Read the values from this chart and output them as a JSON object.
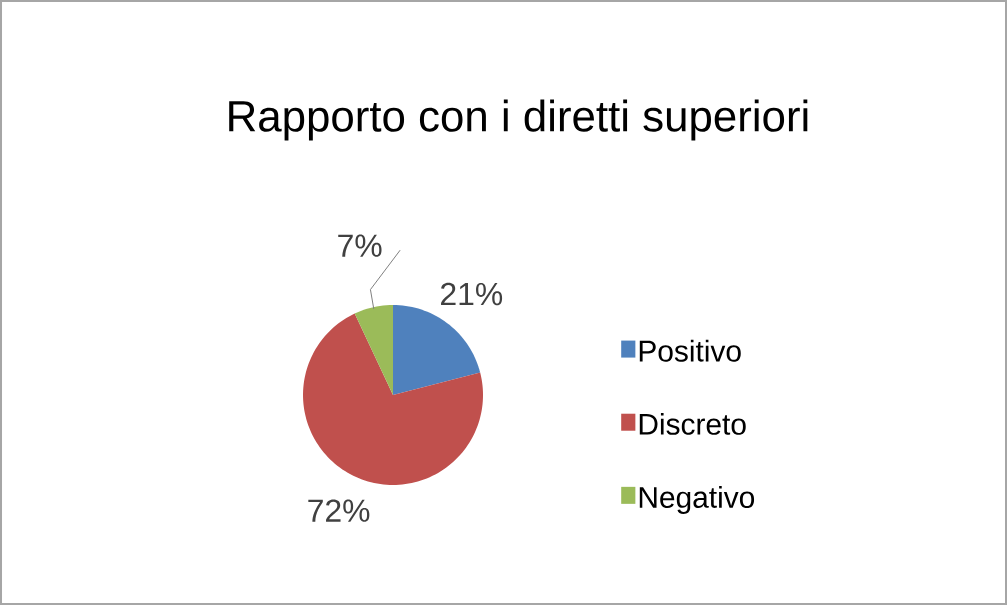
{
  "chart_data": {
    "type": "pie",
    "title": "Rapporto con i diretti superiori",
    "categories": [
      "Positivo",
      "Discreto",
      "Negativo"
    ],
    "values": [
      21,
      72,
      7
    ],
    "value_labels": [
      "21%",
      "72%",
      "7%"
    ],
    "colors": [
      "#4f81bd",
      "#c0504d",
      "#9bbb59"
    ],
    "legend": "right"
  }
}
